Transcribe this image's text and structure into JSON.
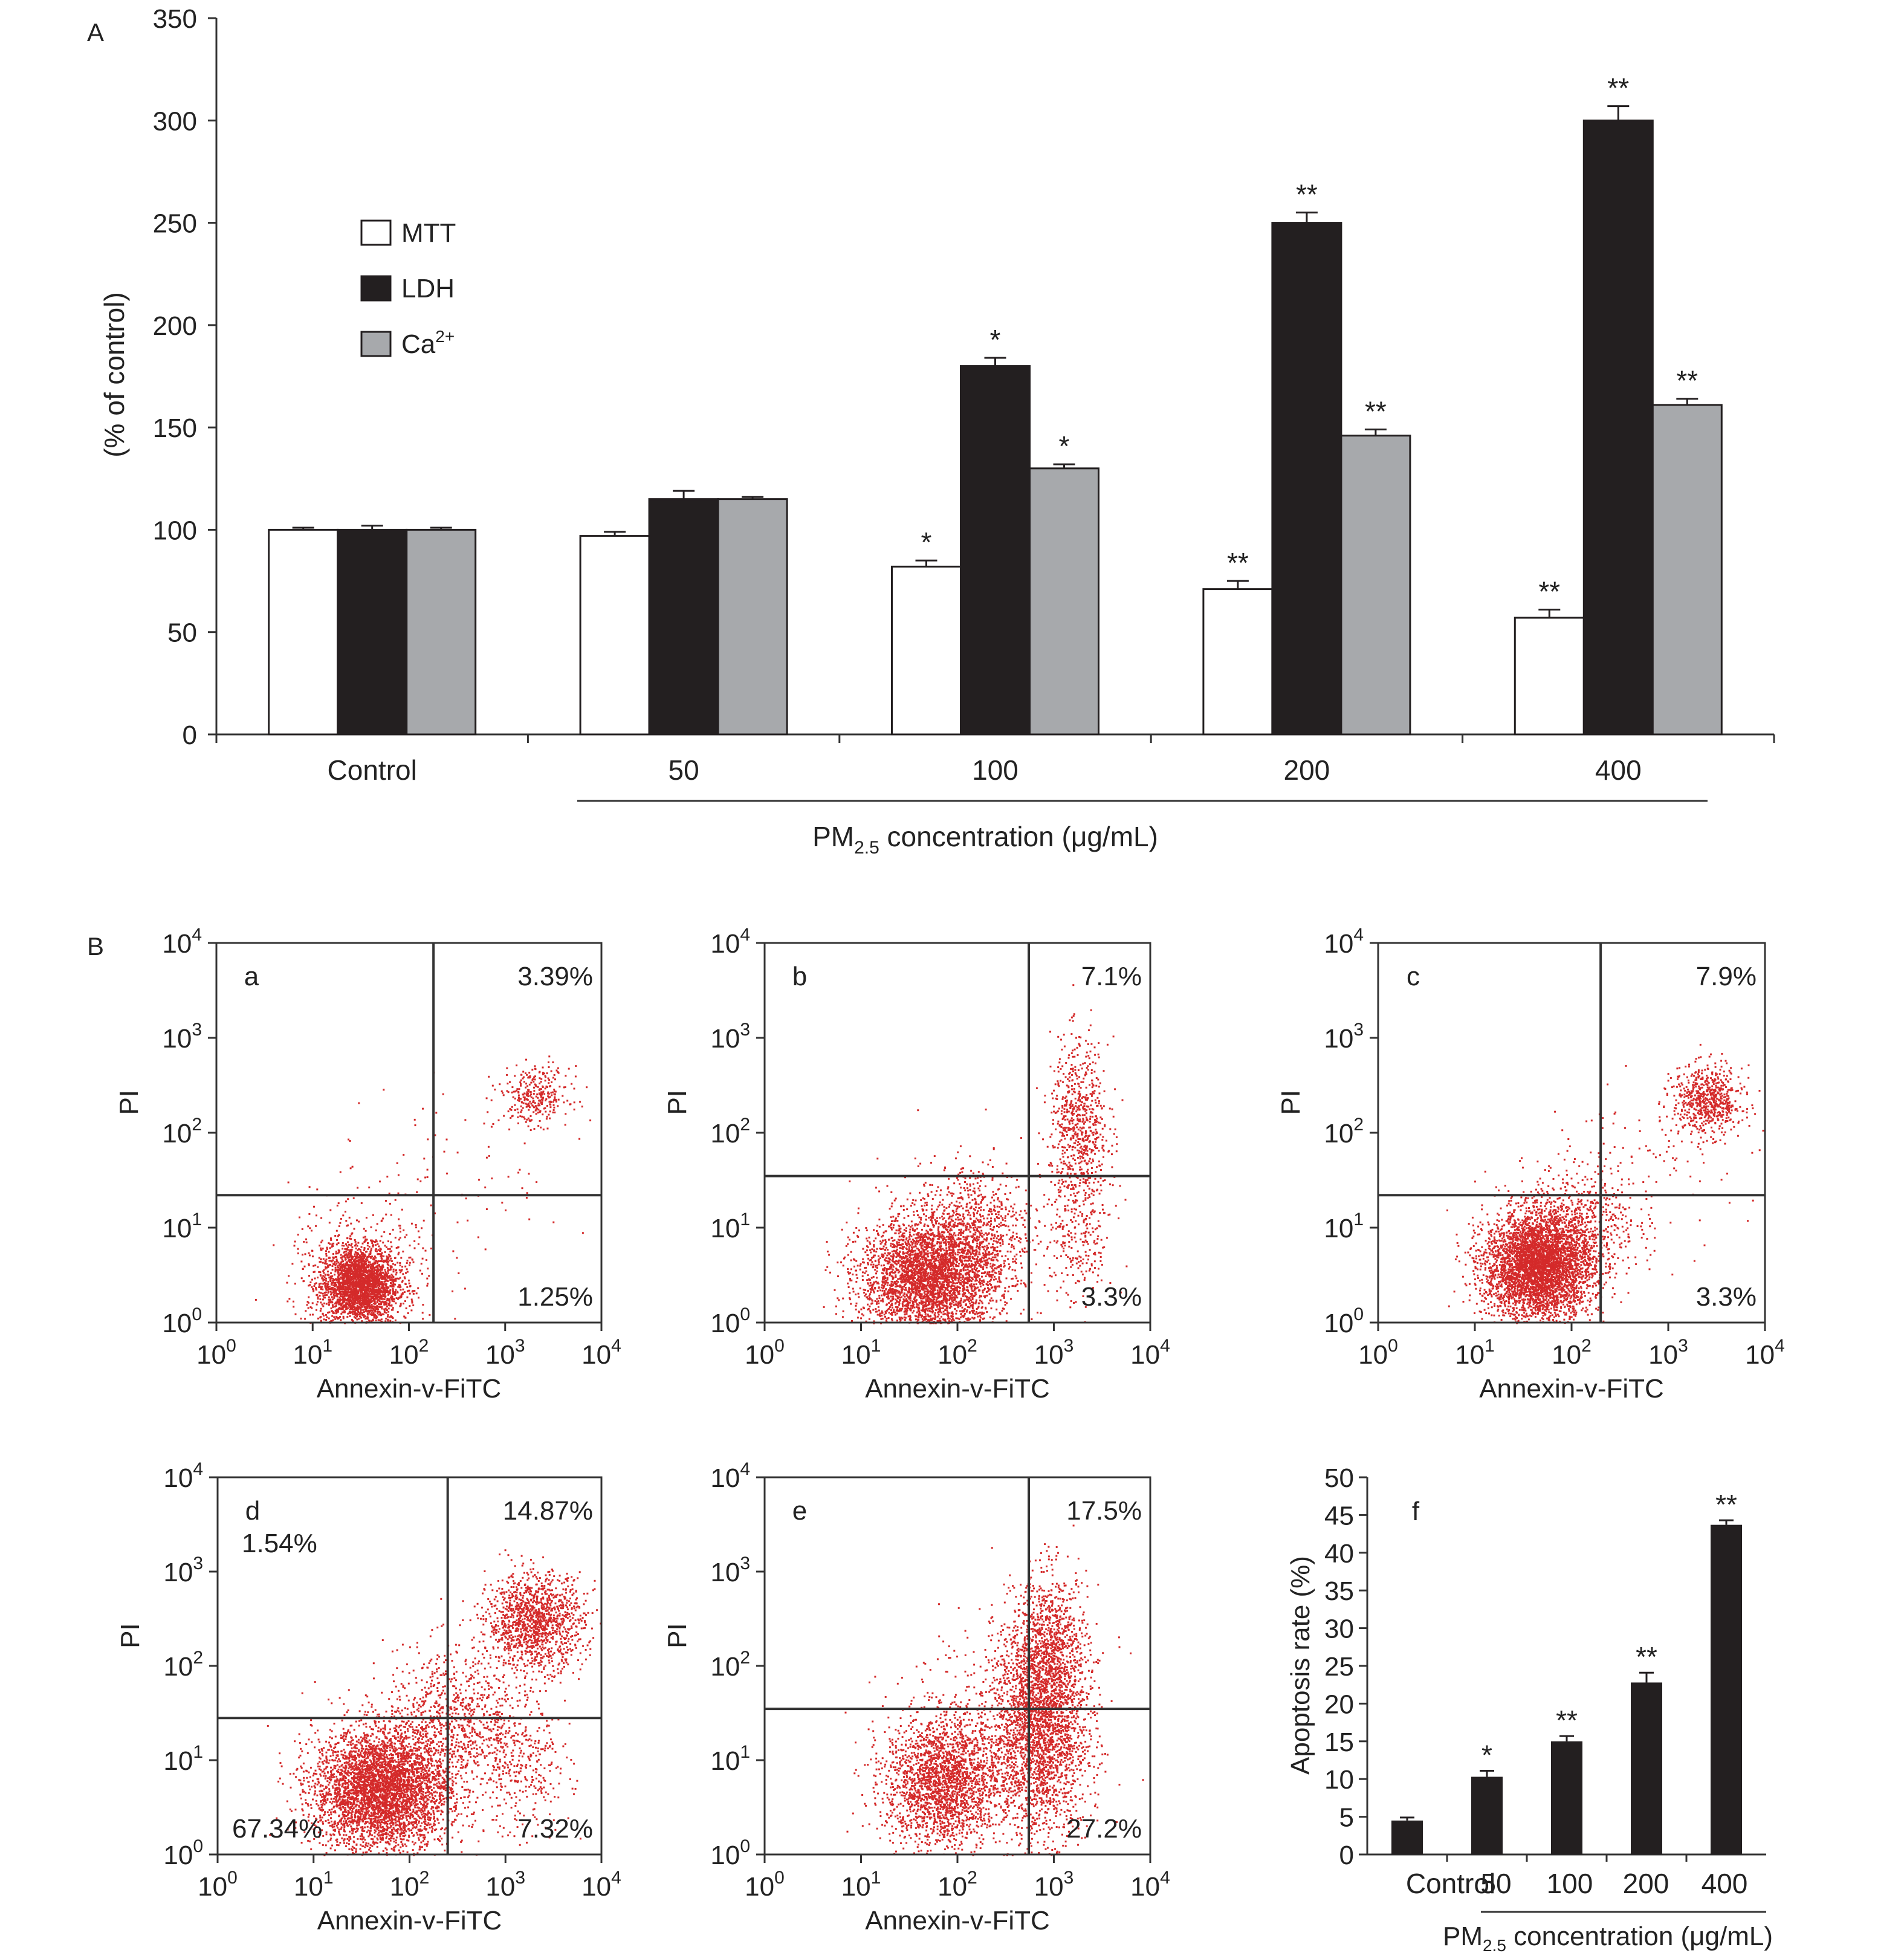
{
  "colors": {
    "mtt": "#ffffff",
    "ldh": "#231f20",
    "ca": "#a7a9ac",
    "dot": "#d42a2a",
    "bar_f": "#231f20",
    "axis": "#333333"
  },
  "chart_data": [
    {
      "id": "A",
      "panel_label": "A",
      "type": "bar",
      "categories": [
        "Control",
        "50",
        "100",
        "200",
        "400"
      ],
      "series": [
        {
          "name": "MTT",
          "values": [
            100,
            97,
            82,
            71,
            57
          ],
          "errors": [
            1,
            2,
            3,
            4,
            4
          ],
          "sig": [
            "",
            "",
            "*",
            "**",
            "**"
          ]
        },
        {
          "name": "LDH",
          "values": [
            100,
            115,
            180,
            250,
            300
          ],
          "errors": [
            2,
            4,
            4,
            5,
            7
          ],
          "sig": [
            "",
            "",
            "*",
            "**",
            "**"
          ]
        },
        {
          "name": "Ca",
          "values": [
            100,
            115,
            130,
            146,
            161
          ],
          "errors": [
            1,
            1,
            2,
            3,
            3
          ],
          "sig": [
            "",
            "",
            "*",
            "**",
            "**"
          ]
        }
      ],
      "ylabel": "(% of control)",
      "xlabel_main": "PM",
      "xlabel_sub": "2.5",
      "xlabel_rest": " concentration (μg/mL)",
      "ylim": [
        0,
        350
      ],
      "yticks": [
        0,
        50,
        100,
        150,
        200,
        250,
        300,
        350
      ],
      "legend": {
        "placement": "upper-left",
        "labels": [
          "MTT",
          "LDH",
          "Ca"
        ],
        "ca_sup": "2+"
      }
    },
    {
      "id": "a",
      "panel_label": "a",
      "type": "scatter",
      "xlabel": "Annexin-v-FiTC",
      "ylabel": "PI",
      "xscale": "log",
      "xlim": [
        1,
        10000
      ],
      "yscale": "log",
      "ylim": [
        1,
        10000
      ],
      "tick_base": "10",
      "tick_exps": [
        "0",
        "1",
        "2",
        "3",
        "4"
      ],
      "quadrant_lines": {
        "x": 180,
        "y": 22
      },
      "quadrant_labels": {
        "UR": "3.39%",
        "LR": "1.25%"
      },
      "clusters": [
        {
          "x": 30,
          "y": 2.5,
          "spread_x": 0.2,
          "spread_y": 0.2,
          "n": 2600
        },
        {
          "x": 35,
          "y": 4,
          "spread_x": 0.4,
          "spread_y": 0.4,
          "n": 350
        },
        {
          "x": 2000,
          "y": 250,
          "spread_x": 0.18,
          "spread_y": 0.15,
          "n": 320
        },
        {
          "x": 400,
          "y": 40,
          "spread_x": 0.5,
          "spread_y": 0.45,
          "n": 70
        }
      ]
    },
    {
      "id": "b",
      "panel_label": "b",
      "type": "scatter",
      "xlabel": "Annexin-v-FiTC",
      "ylabel": "PI",
      "xscale": "log",
      "xlim": [
        1,
        10000
      ],
      "yscale": "log",
      "ylim": [
        1,
        10000
      ],
      "tick_base": "10",
      "tick_exps": [
        "0",
        "1",
        "2",
        "3",
        "4"
      ],
      "quadrant_lines": {
        "x": 550,
        "y": 35
      },
      "quadrant_labels": {
        "UR": "7.1%",
        "LR": "3.3%"
      },
      "clusters": [
        {
          "x": 50,
          "y": 3,
          "spread_x": 0.35,
          "spread_y": 0.32,
          "n": 3600
        },
        {
          "x": 150,
          "y": 10,
          "spread_x": 0.3,
          "spread_y": 0.35,
          "n": 700
        },
        {
          "x": 1800,
          "y": 120,
          "spread_x": 0.15,
          "spread_y": 0.45,
          "n": 700
        },
        {
          "x": 1800,
          "y": 8,
          "spread_x": 0.18,
          "spread_y": 0.4,
          "n": 250
        }
      ]
    },
    {
      "id": "c",
      "panel_label": "c",
      "type": "scatter",
      "xlabel": "Annexin-v-FiTC",
      "ylabel": "PI",
      "xscale": "log",
      "xlim": [
        1,
        10000
      ],
      "yscale": "log",
      "ylim": [
        1,
        10000
      ],
      "tick_base": "10",
      "tick_exps": [
        "0",
        "1",
        "2",
        "3",
        "4"
      ],
      "quadrant_lines": {
        "x": 200,
        "y": 22
      },
      "quadrant_labels": {
        "UR": "7.9%",
        "LR": "3.3%"
      },
      "clusters": [
        {
          "x": 45,
          "y": 4,
          "spread_x": 0.28,
          "spread_y": 0.28,
          "n": 4200
        },
        {
          "x": 120,
          "y": 12,
          "spread_x": 0.3,
          "spread_y": 0.3,
          "n": 500
        },
        {
          "x": 2500,
          "y": 220,
          "spread_x": 0.18,
          "spread_y": 0.18,
          "n": 650
        },
        {
          "x": 600,
          "y": 40,
          "spread_x": 0.45,
          "spread_y": 0.45,
          "n": 120
        }
      ]
    },
    {
      "id": "d",
      "panel_label": "d",
      "type": "scatter",
      "xlabel": "Annexin-v-FiTC",
      "ylabel": "PI",
      "xscale": "log",
      "xlim": [
        1,
        10000
      ],
      "yscale": "log",
      "ylim": [
        1,
        10000
      ],
      "tick_base": "10",
      "tick_exps": [
        "0",
        "1",
        "2",
        "3",
        "4"
      ],
      "quadrant_lines": {
        "x": 250,
        "y": 28
      },
      "quadrant_labels": {
        "UL": "1.54%",
        "UR": "14.87%",
        "LL": "67.34%",
        "LR": "7.32%"
      },
      "clusters": [
        {
          "x": 50,
          "y": 5,
          "spread_x": 0.35,
          "spread_y": 0.32,
          "n": 4200
        },
        {
          "x": 300,
          "y": 25,
          "spread_x": 0.38,
          "spread_y": 0.4,
          "n": 900
        },
        {
          "x": 2000,
          "y": 300,
          "spread_x": 0.25,
          "spread_y": 0.25,
          "n": 1300
        },
        {
          "x": 1500,
          "y": 8,
          "spread_x": 0.25,
          "spread_y": 0.35,
          "n": 300
        }
      ]
    },
    {
      "id": "e",
      "panel_label": "e",
      "type": "scatter",
      "xlabel": "Annexin-v-FiTC",
      "ylabel": "PI",
      "xscale": "log",
      "xlim": [
        1,
        10000
      ],
      "yscale": "log",
      "ylim": [
        1,
        10000
      ],
      "tick_base": "10",
      "tick_exps": [
        "0",
        "1",
        "2",
        "3",
        "4"
      ],
      "quadrant_lines": {
        "x": 550,
        "y": 35
      },
      "quadrant_labels": {
        "UR": "17.5%",
        "LR": "27.2%"
      },
      "clusters": [
        {
          "x": 70,
          "y": 6,
          "spread_x": 0.3,
          "spread_y": 0.35,
          "n": 2200
        },
        {
          "x": 700,
          "y": 20,
          "spread_x": 0.25,
          "spread_y": 0.55,
          "n": 2400
        },
        {
          "x": 900,
          "y": 150,
          "spread_x": 0.2,
          "spread_y": 0.4,
          "n": 900
        },
        {
          "x": 200,
          "y": 40,
          "spread_x": 0.45,
          "spread_y": 0.45,
          "n": 250
        }
      ]
    },
    {
      "id": "f",
      "panel_label": "f",
      "type": "bar",
      "categories": [
        "Control",
        "50",
        "100",
        "200",
        "400"
      ],
      "values": [
        4.5,
        10.3,
        15,
        22.8,
        43.7
      ],
      "errors": [
        0.4,
        0.8,
        0.7,
        1.3,
        0.6
      ],
      "sig": [
        "",
        "*",
        "**",
        "**",
        "**"
      ],
      "ylabel": "Apoptosis rate (%)",
      "xlabel_main": "PM",
      "xlabel_sub": "2.5",
      "xlabel_rest": " concentration (μg/mL)",
      "ylim": [
        0,
        50
      ],
      "yticks": [
        0,
        5,
        10,
        15,
        20,
        25,
        30,
        35,
        40,
        45,
        50
      ]
    }
  ],
  "panel_B_label": "B"
}
